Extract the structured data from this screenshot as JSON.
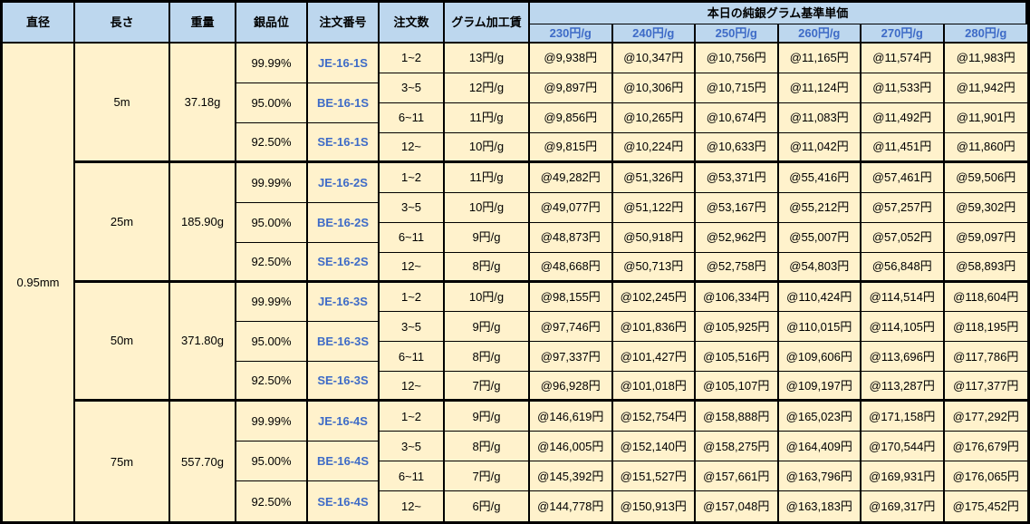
{
  "colors": {
    "header_bg": "#BDD7EE",
    "cell_bg": "#FFF2CC",
    "accent_blue": "#3E6BC7",
    "border": "#000000"
  },
  "table": {
    "column_headers": {
      "diameter": "直径",
      "length": "長さ",
      "weight": "重量",
      "purity": "銀品位",
      "order_no": "注文番号",
      "qty": "注文数",
      "fee": "グラム加工賃"
    },
    "price_group_header": "本日の純銀グラム基準単価",
    "rate_headers": [
      "230円/g",
      "240円/g",
      "250円/g",
      "260円/g",
      "270円/g",
      "280円/g"
    ],
    "diameter": "0.95mm",
    "blocks": [
      {
        "length": "5m",
        "weight": "37.18g",
        "purities": [
          {
            "purity": "99.99%",
            "order_no": "JE-16-1S"
          },
          {
            "purity": "95.00%",
            "order_no": "BE-16-1S"
          },
          {
            "purity": "92.50%",
            "order_no": "SE-16-1S"
          }
        ],
        "rows": [
          {
            "qty": "1~2",
            "fee": "13円/g",
            "prices": [
              "@9,938円",
              "@10,347円",
              "@10,756円",
              "@11,165円",
              "@11,574円",
              "@11,983円"
            ]
          },
          {
            "qty": "3~5",
            "fee": "12円/g",
            "prices": [
              "@9,897円",
              "@10,306円",
              "@10,715円",
              "@11,124円",
              "@11,533円",
              "@11,942円"
            ]
          },
          {
            "qty": "6~11",
            "fee": "11円/g",
            "prices": [
              "@9,856円",
              "@10,265円",
              "@10,674円",
              "@11,083円",
              "@11,492円",
              "@11,901円"
            ]
          },
          {
            "qty": "12~",
            "fee": "10円/g",
            "prices": [
              "@9,815円",
              "@10,224円",
              "@10,633円",
              "@11,042円",
              "@11,451円",
              "@11,860円"
            ]
          }
        ]
      },
      {
        "length": "25m",
        "weight": "185.90g",
        "purities": [
          {
            "purity": "99.99%",
            "order_no": "JE-16-2S"
          },
          {
            "purity": "95.00%",
            "order_no": "BE-16-2S"
          },
          {
            "purity": "92.50%",
            "order_no": "SE-16-2S"
          }
        ],
        "rows": [
          {
            "qty": "1~2",
            "fee": "11円/g",
            "prices": [
              "@49,282円",
              "@51,326円",
              "@53,371円",
              "@55,416円",
              "@57,461円",
              "@59,506円"
            ]
          },
          {
            "qty": "3~5",
            "fee": "10円/g",
            "prices": [
              "@49,077円",
              "@51,122円",
              "@53,167円",
              "@55,212円",
              "@57,257円",
              "@59,302円"
            ]
          },
          {
            "qty": "6~11",
            "fee": "9円/g",
            "prices": [
              "@48,873円",
              "@50,918円",
              "@52,962円",
              "@55,007円",
              "@57,052円",
              "@59,097円"
            ]
          },
          {
            "qty": "12~",
            "fee": "8円/g",
            "prices": [
              "@48,668円",
              "@50,713円",
              "@52,758円",
              "@54,803円",
              "@56,848円",
              "@58,893円"
            ]
          }
        ]
      },
      {
        "length": "50m",
        "weight": "371.80g",
        "purities": [
          {
            "purity": "99.99%",
            "order_no": "JE-16-3S"
          },
          {
            "purity": "95.00%",
            "order_no": "BE-16-3S"
          },
          {
            "purity": "92.50%",
            "order_no": "SE-16-3S"
          }
        ],
        "rows": [
          {
            "qty": "1~2",
            "fee": "10円/g",
            "prices": [
              "@98,155円",
              "@102,245円",
              "@106,334円",
              "@110,424円",
              "@114,514円",
              "@118,604円"
            ]
          },
          {
            "qty": "3~5",
            "fee": "9円/g",
            "prices": [
              "@97,746円",
              "@101,836円",
              "@105,925円",
              "@110,015円",
              "@114,105円",
              "@118,195円"
            ]
          },
          {
            "qty": "6~11",
            "fee": "8円/g",
            "prices": [
              "@97,337円",
              "@101,427円",
              "@105,516円",
              "@109,606円",
              "@113,696円",
              "@117,786円"
            ]
          },
          {
            "qty": "12~",
            "fee": "7円/g",
            "prices": [
              "@96,928円",
              "@101,018円",
              "@105,107円",
              "@109,197円",
              "@113,287円",
              "@117,377円"
            ]
          }
        ]
      },
      {
        "length": "75m",
        "weight": "557.70g",
        "purities": [
          {
            "purity": "99.99%",
            "order_no": "JE-16-4S"
          },
          {
            "purity": "95.00%",
            "order_no": "BE-16-4S"
          },
          {
            "purity": "92.50%",
            "order_no": "SE-16-4S"
          }
        ],
        "rows": [
          {
            "qty": "1~2",
            "fee": "9円/g",
            "prices": [
              "@146,619円",
              "@152,754円",
              "@158,888円",
              "@165,023円",
              "@171,158円",
              "@177,292円"
            ]
          },
          {
            "qty": "3~5",
            "fee": "8円/g",
            "prices": [
              "@146,005円",
              "@152,140円",
              "@158,275円",
              "@164,409円",
              "@170,544円",
              "@176,679円"
            ]
          },
          {
            "qty": "6~11",
            "fee": "7円/g",
            "prices": [
              "@145,392円",
              "@151,527円",
              "@157,661円",
              "@163,796円",
              "@169,931円",
              "@176,065円"
            ]
          },
          {
            "qty": "12~",
            "fee": "6円/g",
            "prices": [
              "@144,778円",
              "@150,913円",
              "@157,048円",
              "@163,183円",
              "@169,317円",
              "@175,452円"
            ]
          }
        ]
      }
    ]
  }
}
